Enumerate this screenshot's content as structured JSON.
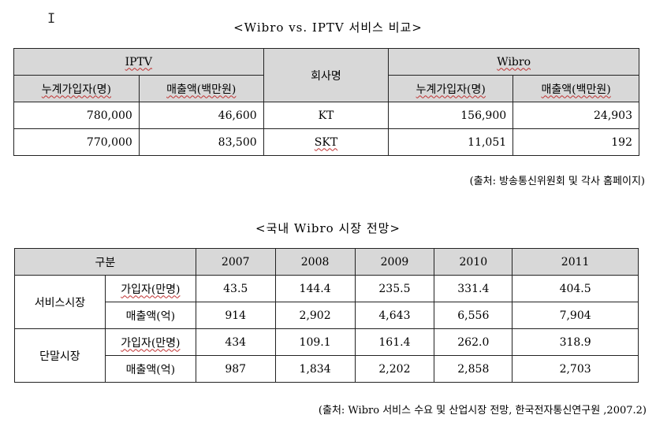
{
  "cursor_glyph": "I",
  "table1": {
    "caption": "<Wibro vs. IPTV 서비스 비교>",
    "group_left": "IPTV",
    "company_header": "회사명",
    "group_right": "Wibro",
    "col_subscribers": "누계가입자(명)",
    "col_sales": "매출액(백만원)",
    "rows": [
      {
        "company": "KT",
        "iptv_subs": "780,000",
        "iptv_sales": "46,600",
        "wibro_subs": "156,900",
        "wibro_sales": "24,903"
      },
      {
        "company": "SKT",
        "iptv_subs": "770,000",
        "iptv_sales": "83,500",
        "wibro_subs": "11,051",
        "wibro_sales": "192"
      }
    ],
    "source": "(출처: 방송통신위원회 및 각사 홈페이지)"
  },
  "table2": {
    "caption": "<국내 Wibro 시장 전망>",
    "corner": "구분",
    "years": [
      "2007",
      "2008",
      "2009",
      "2010",
      "2011"
    ],
    "groups": [
      {
        "name": "서비스시장",
        "rows": [
          {
            "label": "가입자(만명)",
            "values": [
              "43.5",
              "144.4",
              "235.5",
              "331.4",
              "404.5"
            ]
          },
          {
            "label": "매출액(억)",
            "values": [
              "914",
              "2,902",
              "4,643",
              "6,556",
              "7,904"
            ]
          }
        ]
      },
      {
        "name": "단말시장",
        "rows": [
          {
            "label": "가입자(만명)",
            "values": [
              "434",
              "109.1",
              "161.4",
              "262.0",
              "318.9"
            ]
          },
          {
            "label": "매출액(억)",
            "values": [
              "987",
              "1,834",
              "2,202",
              "2,858",
              "2,703"
            ]
          }
        ]
      }
    ],
    "source": "(출처: Wibro 서비스 수요 및 산업시장 전망, 한국전자통신연구원 ,2007.2)"
  }
}
